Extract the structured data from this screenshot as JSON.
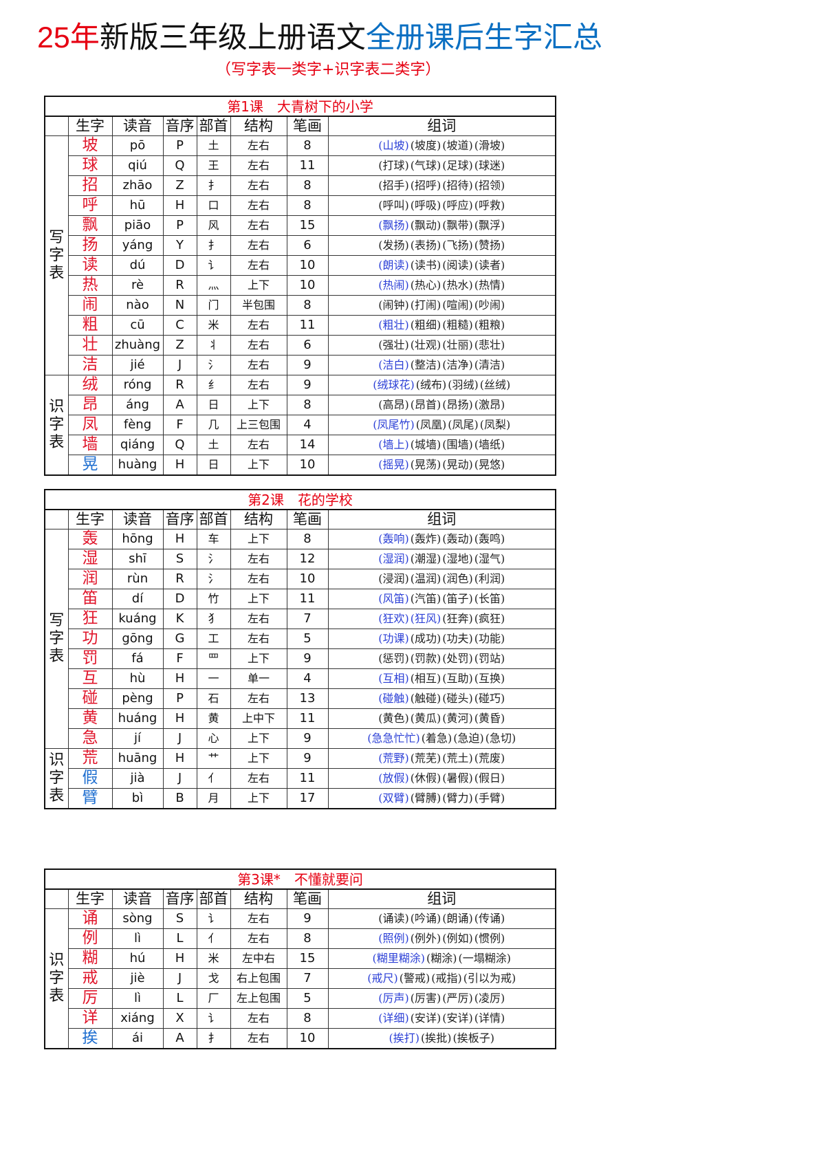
{
  "title": {
    "part1": "25年",
    "part2": "新版三年级上册语文",
    "part3": "全册课后生字汇总"
  },
  "subtitle": "（写字表一类字+识字表二类字）",
  "colors": {
    "title_red": "#e60012",
    "title_blue": "#0a6fc2",
    "char_red": "#e0162b",
    "char_blue": "#1f6fd0",
    "word_highlight": "#2b3fd6"
  },
  "columns": [
    "生字",
    "读音",
    "音序",
    "部首",
    "结构",
    "笔画",
    "组词"
  ],
  "lessons": [
    {
      "caption": "第1课　大青树下的小学",
      "groups": [
        {
          "label": "写字表",
          "count": 12
        },
        {
          "label": "识字表",
          "count": 5
        }
      ],
      "rows": [
        {
          "char": "坡",
          "pinyin": "pō",
          "initial": "P",
          "radical": "土",
          "structure": "左右",
          "strokes": "8",
          "words": [
            "(山坡)",
            "(坡度)",
            "(坡道)",
            "(滑坡)"
          ],
          "highlighted": 1,
          "char_color": "red"
        },
        {
          "char": "球",
          "pinyin": "qiú",
          "initial": "Q",
          "radical": "王",
          "structure": "左右",
          "strokes": "11",
          "words": [
            "(打球)",
            "(气球)",
            "(足球)",
            "(球迷)"
          ],
          "highlighted": 0,
          "char_color": "red"
        },
        {
          "char": "招",
          "pinyin": "zhāo",
          "initial": "Z",
          "radical": "扌",
          "structure": "左右",
          "strokes": "8",
          "words": [
            "(招手)",
            "(招呼)",
            "(招待)",
            "(招领)"
          ],
          "highlighted": 0,
          "char_color": "red"
        },
        {
          "char": "呼",
          "pinyin": "hū",
          "initial": "H",
          "radical": "口",
          "structure": "左右",
          "strokes": "8",
          "words": [
            "(呼叫)",
            "(呼吸)",
            "(呼应)",
            "(呼救)"
          ],
          "highlighted": 0,
          "char_color": "red"
        },
        {
          "char": "飘",
          "pinyin": "piāo",
          "initial": "P",
          "radical": "风",
          "structure": "左右",
          "strokes": "15",
          "words": [
            "(飘扬)",
            "(飘动)",
            "(飘带)",
            "(飘浮)"
          ],
          "highlighted": 1,
          "char_color": "red"
        },
        {
          "char": "扬",
          "pinyin": "yáng",
          "initial": "Y",
          "radical": "扌",
          "structure": "左右",
          "strokes": "6",
          "words": [
            "(发扬)",
            "(表扬)",
            "(飞扬)",
            "(赞扬)"
          ],
          "highlighted": 0,
          "char_color": "red"
        },
        {
          "char": "读",
          "pinyin": "dú",
          "initial": "D",
          "radical": "讠",
          "structure": "左右",
          "strokes": "10",
          "words": [
            "(朗读)",
            "(读书)",
            "(阅读)",
            "(读者)"
          ],
          "highlighted": 1,
          "char_color": "red"
        },
        {
          "char": "热",
          "pinyin": "rè",
          "initial": "R",
          "radical": "灬",
          "structure": "上下",
          "strokes": "10",
          "words": [
            "(热闹)",
            "(热心)",
            "(热水)",
            "(热情)"
          ],
          "highlighted": 1,
          "char_color": "red"
        },
        {
          "char": "闹",
          "pinyin": "nào",
          "initial": "N",
          "radical": "门",
          "structure": "半包围",
          "strokes": "8",
          "words": [
            "(闹钟)",
            "(打闹)",
            "(喧闹)",
            "(吵闹)"
          ],
          "highlighted": 0,
          "char_color": "red"
        },
        {
          "char": "粗",
          "pinyin": "cū",
          "initial": "C",
          "radical": "米",
          "structure": "左右",
          "strokes": "11",
          "words": [
            "(粗壮)",
            "(粗细)",
            "(粗糙)",
            "(粗粮)"
          ],
          "highlighted": 1,
          "char_color": "red"
        },
        {
          "char": "壮",
          "pinyin": "zhuàng",
          "initial": "Z",
          "radical": "丬",
          "structure": "左右",
          "strokes": "6",
          "words": [
            "(强壮)",
            "(壮观)",
            "(壮丽)",
            "(悲壮)"
          ],
          "highlighted": 0,
          "char_color": "red"
        },
        {
          "char": "洁",
          "pinyin": "jié",
          "initial": "J",
          "radical": "氵",
          "structure": "左右",
          "strokes": "9",
          "words": [
            "(洁白)",
            "(整洁)",
            "(洁净)",
            "(清洁)"
          ],
          "highlighted": 1,
          "char_color": "red"
        },
        {
          "char": "绒",
          "pinyin": "róng",
          "initial": "R",
          "radical": "纟",
          "structure": "左右",
          "strokes": "9",
          "words": [
            "(绒球花)",
            "(绒布)",
            "(羽绒)",
            "(丝绒)"
          ],
          "highlighted": 1,
          "char_color": "red"
        },
        {
          "char": "昂",
          "pinyin": "áng",
          "initial": "A",
          "radical": "日",
          "structure": "上下",
          "strokes": "8",
          "words": [
            "(高昂)",
            "(昂首)",
            "(昂扬)",
            "(激昂)"
          ],
          "highlighted": 0,
          "char_color": "red"
        },
        {
          "char": "凤",
          "pinyin": "fèng",
          "initial": "F",
          "radical": "几",
          "structure": "上三包围",
          "strokes": "4",
          "words": [
            "(凤尾竹)",
            "(凤凰)",
            "(凤尾)",
            "(凤梨)"
          ],
          "highlighted": 1,
          "char_color": "red"
        },
        {
          "char": "墙",
          "pinyin": "qiáng",
          "initial": "Q",
          "radical": "土",
          "structure": "左右",
          "strokes": "14",
          "words": [
            "(墙上)",
            "(城墙)",
            "(围墙)",
            "(墙纸)"
          ],
          "highlighted": 1,
          "char_color": "red"
        },
        {
          "char": "晃",
          "pinyin": "huàng",
          "initial": "H",
          "radical": "日",
          "structure": "上下",
          "strokes": "10",
          "words": [
            "(摇晃)",
            "(晃荡)",
            "(晃动)",
            "(晃悠)"
          ],
          "highlighted": 1,
          "char_color": "blue"
        }
      ]
    },
    {
      "caption": "第2课　花的学校",
      "groups": [
        {
          "label": "写字表",
          "count": 11
        },
        {
          "label": "识字表",
          "count": 3
        }
      ],
      "rows": [
        {
          "char": "轰",
          "pinyin": "hōng",
          "initial": "H",
          "radical": "车",
          "structure": "上下",
          "strokes": "8",
          "words": [
            "(轰响)",
            "(轰炸)",
            "(轰动)",
            "(轰鸣)"
          ],
          "highlighted": 1,
          "char_color": "red"
        },
        {
          "char": "湿",
          "pinyin": "shī",
          "initial": "S",
          "radical": "氵",
          "structure": "左右",
          "strokes": "12",
          "words": [
            "(湿润)",
            "(潮湿)",
            "(湿地)",
            "(湿气)"
          ],
          "highlighted": 1,
          "char_color": "red"
        },
        {
          "char": "润",
          "pinyin": "rùn",
          "initial": "R",
          "radical": "氵",
          "structure": "左右",
          "strokes": "10",
          "words": [
            "(浸润)",
            "(温润)",
            "(润色)",
            "(利润)"
          ],
          "highlighted": 0,
          "char_color": "red"
        },
        {
          "char": "笛",
          "pinyin": "dí",
          "initial": "D",
          "radical": "竹",
          "structure": "上下",
          "strokes": "11",
          "words": [
            "(风笛)",
            "(汽笛)",
            "(笛子)",
            "(长笛)"
          ],
          "highlighted": 1,
          "char_color": "red"
        },
        {
          "char": "狂",
          "pinyin": "kuáng",
          "initial": "K",
          "radical": "犭",
          "structure": "左右",
          "strokes": "7",
          "words": [
            "(狂欢)",
            "(狂风)",
            "(狂奔)",
            "(疯狂)"
          ],
          "highlighted": 2,
          "char_color": "red"
        },
        {
          "char": "功",
          "pinyin": "gōng",
          "initial": "G",
          "radical": "工",
          "structure": "左右",
          "strokes": "5",
          "words": [
            "(功课)",
            "(成功)",
            "(功夫)",
            "(功能)"
          ],
          "highlighted": 1,
          "char_color": "red"
        },
        {
          "char": "罚",
          "pinyin": "fá",
          "initial": "F",
          "radical": "罒",
          "structure": "上下",
          "strokes": "9",
          "words": [
            "(惩罚)",
            "(罚款)",
            "(处罚)",
            "(罚站)"
          ],
          "highlighted": 0,
          "char_color": "red"
        },
        {
          "char": "互",
          "pinyin": "hù",
          "initial": "H",
          "radical": "一",
          "structure": "单一",
          "strokes": "4",
          "words": [
            "(互相)",
            "(相互)",
            "(互助)",
            "(互换)"
          ],
          "highlighted": 1,
          "char_color": "red"
        },
        {
          "char": "碰",
          "pinyin": "pèng",
          "initial": "P",
          "radical": "石",
          "structure": "左右",
          "strokes": "13",
          "words": [
            "(碰触)",
            "(触碰)",
            "(碰头)",
            "(碰巧)"
          ],
          "highlighted": 1,
          "char_color": "red"
        },
        {
          "char": "黄",
          "pinyin": "huáng",
          "initial": "H",
          "radical": "黄",
          "structure": "上中下",
          "strokes": "11",
          "words": [
            "(黄色)",
            "(黄瓜)",
            "(黄河)",
            "(黄昏)"
          ],
          "highlighted": 0,
          "char_color": "red"
        },
        {
          "char": "急",
          "pinyin": "jí",
          "initial": "J",
          "radical": "心",
          "structure": "上下",
          "strokes": "9",
          "words": [
            "(急急忙忙)",
            "(着急)",
            "(急迫)",
            "(急切)"
          ],
          "highlighted": 1,
          "char_color": "red"
        },
        {
          "char": "荒",
          "pinyin": "huāng",
          "initial": "H",
          "radical": "艹",
          "structure": "上下",
          "strokes": "9",
          "words": [
            "(荒野)",
            "(荒芜)",
            "(荒土)",
            "(荒废)"
          ],
          "highlighted": 1,
          "char_color": "red"
        },
        {
          "char": "假",
          "pinyin": "jià",
          "initial": "J",
          "radical": "亻",
          "structure": "左右",
          "strokes": "11",
          "words": [
            "(放假)",
            "(休假)",
            "(暑假)",
            "(假日)"
          ],
          "highlighted": 1,
          "char_color": "blue"
        },
        {
          "char": "臂",
          "pinyin": "bì",
          "initial": "B",
          "radical": "月",
          "structure": "上下",
          "strokes": "17",
          "words": [
            "(双臂)",
            "(臂膊)",
            "(臂力)",
            "(手臂)"
          ],
          "highlighted": 1,
          "char_color": "blue"
        }
      ]
    },
    {
      "caption": "第3课*　不懂就要问",
      "groups": [
        {
          "label": "识字表",
          "count": 7
        }
      ],
      "rows": [
        {
          "char": "诵",
          "pinyin": "sòng",
          "initial": "S",
          "radical": "讠",
          "structure": "左右",
          "strokes": "9",
          "words": [
            "(诵读)",
            "(吟诵)",
            "(朗诵)",
            "(传诵)"
          ],
          "highlighted": 0,
          "char_color": "red"
        },
        {
          "char": "例",
          "pinyin": "lì",
          "initial": "L",
          "radical": "亻",
          "structure": "左右",
          "strokes": "8",
          "words": [
            "(照例)",
            "(例外)",
            "(例如)",
            "(惯例)"
          ],
          "highlighted": 1,
          "char_color": "red"
        },
        {
          "char": "糊",
          "pinyin": "hú",
          "initial": "H",
          "radical": "米",
          "structure": "左中右",
          "strokes": "15",
          "words": [
            "(糊里糊涂)",
            "(糊涂)",
            "(一塌糊涂)"
          ],
          "highlighted": 1,
          "char_color": "red"
        },
        {
          "char": "戒",
          "pinyin": "jiè",
          "initial": "J",
          "radical": "戈",
          "structure": "右上包围",
          "strokes": "7",
          "words": [
            "(戒尺)",
            "(警戒)",
            "(戒指)",
            "(引以为戒)"
          ],
          "highlighted": 1,
          "char_color": "red"
        },
        {
          "char": "厉",
          "pinyin": "lì",
          "initial": "L",
          "radical": "厂",
          "structure": "左上包围",
          "strokes": "5",
          "words": [
            "(厉声)",
            "(厉害)",
            "(严厉)",
            "(凌厉)"
          ],
          "highlighted": 1,
          "char_color": "red"
        },
        {
          "char": "详",
          "pinyin": "xiáng",
          "initial": "X",
          "radical": "讠",
          "structure": "左右",
          "strokes": "8",
          "words": [
            "(详细)",
            "(安详)",
            "(安详)",
            "(详情)"
          ],
          "highlighted": 1,
          "char_color": "red"
        },
        {
          "char": "挨",
          "pinyin": "ái",
          "initial": "A",
          "radical": "扌",
          "structure": "左右",
          "strokes": "10",
          "words": [
            "(挨打)",
            "(挨批)",
            "(挨板子)"
          ],
          "highlighted": 1,
          "char_color": "blue"
        }
      ]
    }
  ]
}
